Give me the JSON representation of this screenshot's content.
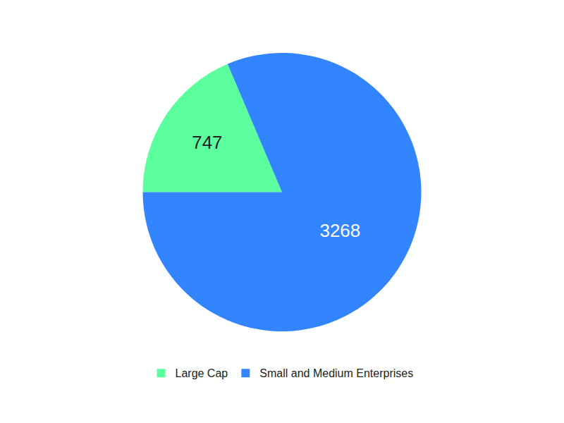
{
  "chart_data": {
    "type": "pie",
    "categories": [
      "Large Cap",
      "Small and Medium Enterprises"
    ],
    "values": [
      747,
      3268
    ],
    "colors": [
      "#5cff9e",
      "#3385ff"
    ],
    "data_labels": true,
    "legend": "bottom"
  }
}
